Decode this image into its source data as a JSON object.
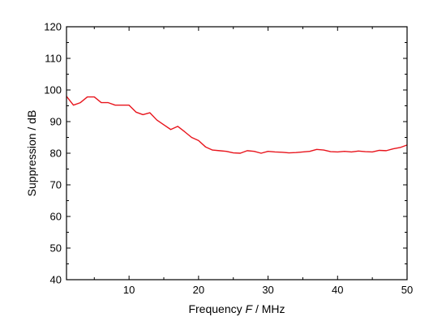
{
  "chart_data": {
    "type": "line",
    "title": "",
    "xlabel_prefix": "Frequency ",
    "xlabel_symbol": "F",
    "xlabel_suffix": " / MHz",
    "ylabel": "Suppression / dB",
    "xlim": [
      1,
      50
    ],
    "ylim": [
      40,
      120
    ],
    "x_ticks": [
      10,
      20,
      30,
      40,
      50
    ],
    "y_ticks": [
      40,
      50,
      60,
      70,
      80,
      90,
      100,
      110,
      120
    ],
    "x_minor_step": 5,
    "y_minor_step": 5,
    "grid": false,
    "line_color": "#e8141c",
    "series": [
      {
        "x": [
          1,
          2,
          3,
          4,
          5,
          6,
          7,
          8,
          9,
          10,
          11,
          12,
          13,
          14,
          15,
          16,
          17,
          18,
          19,
          20,
          21,
          22,
          23,
          24,
          25,
          26,
          27,
          28,
          29,
          30,
          31,
          32,
          33,
          34,
          35,
          36,
          37,
          38,
          39,
          40,
          41,
          42,
          43,
          44,
          45,
          46,
          47,
          48,
          49,
          50
        ],
        "values": [
          98,
          95.2,
          96,
          97.8,
          97.8,
          96,
          96,
          95.2,
          95.2,
          95.2,
          93,
          92.2,
          92.8,
          90.5,
          89,
          87.5,
          88.5,
          86.8,
          85,
          84,
          82,
          81,
          80.8,
          80.6,
          80.1,
          80,
          80.8,
          80.6,
          80,
          80.6,
          80.4,
          80.3,
          80.1,
          80.2,
          80.4,
          80.6,
          81.2,
          81,
          80.5,
          80.4,
          80.6,
          80.4,
          80.7,
          80.5,
          80.4,
          80.9,
          80.8,
          81.4,
          81.8,
          82.6
        ]
      }
    ]
  }
}
